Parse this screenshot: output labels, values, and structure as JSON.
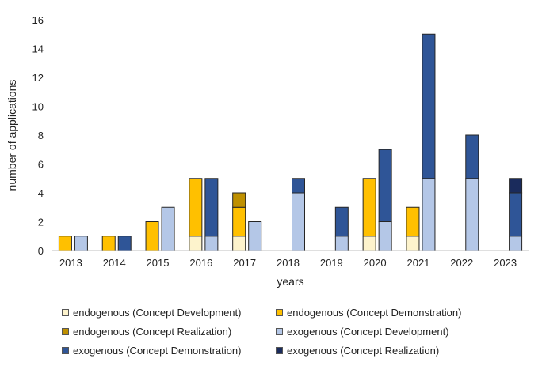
{
  "chart_data": {
    "type": "bar",
    "stacked": true,
    "grouped": true,
    "title": "",
    "xlabel": "years",
    "ylabel": "number of applications",
    "ylim": [
      0,
      16
    ],
    "yticks": [
      0,
      2,
      4,
      6,
      8,
      10,
      12,
      14,
      16
    ],
    "categories": [
      "2013",
      "2014",
      "2015",
      "2016",
      "2017",
      "2018",
      "2019",
      "2020",
      "2021",
      "2022",
      "2023"
    ],
    "groups": [
      "endogenous",
      "exogenous"
    ],
    "series": [
      {
        "name": "endogenous (Concept Development)",
        "group": "endogenous",
        "color": "#fdf3cc",
        "values": [
          0,
          0,
          0,
          1,
          1,
          0,
          0,
          1,
          1,
          0,
          0
        ]
      },
      {
        "name": "endogenous (Concept Demonstration)",
        "group": "endogenous",
        "color": "#ffc000",
        "values": [
          1,
          1,
          2,
          4,
          2,
          0,
          0,
          4,
          2,
          0,
          0
        ]
      },
      {
        "name": "endogenous (Concept Realization)",
        "group": "endogenous",
        "color": "#bf9000",
        "values": [
          0,
          0,
          0,
          0,
          1,
          0,
          0,
          0,
          0,
          0,
          0
        ]
      },
      {
        "name": "exogenous (Concept Development)",
        "group": "exogenous",
        "color": "#b4c7e7",
        "values": [
          1,
          0,
          3,
          1,
          2,
          4,
          1,
          2,
          5,
          5,
          1
        ]
      },
      {
        "name": "exogenous (Concept Demonstration)",
        "group": "exogenous",
        "color": "#2f5597",
        "values": [
          0,
          1,
          0,
          4,
          0,
          1,
          2,
          5,
          10,
          3,
          3
        ]
      },
      {
        "name": "exogenous (Concept Realization)",
        "group": "exogenous",
        "color": "#1a2b5c",
        "values": [
          0,
          0,
          0,
          0,
          0,
          0,
          0,
          0,
          0,
          0,
          1
        ]
      }
    ],
    "legend_position": "bottom",
    "grid": false
  }
}
